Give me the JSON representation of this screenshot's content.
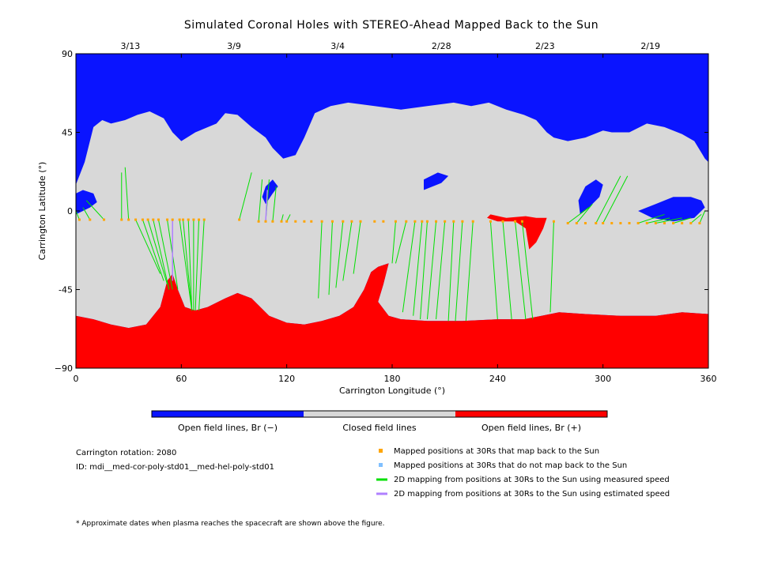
{
  "chart_data": {
    "type": "map",
    "title": "Simulated Coronal Holes with STEREO-Ahead Mapped Back to the Sun",
    "xlabel": "Carrington Longitude (°)",
    "ylabel": "Carrington Latitude (°)",
    "xlim": [
      0,
      360
    ],
    "ylim": [
      -90,
      90
    ],
    "x_ticks": [
      0,
      60,
      120,
      180,
      240,
      300,
      360
    ],
    "y_ticks": [
      {
        "value": 90,
        "label": "90"
      },
      {
        "value": 45,
        "label": "45"
      },
      {
        "value": 0,
        "label": "0"
      },
      {
        "value": -45,
        "label": "-45"
      },
      {
        "value": -90,
        "label": "−90"
      }
    ],
    "date_ticks": [
      {
        "lon": 31,
        "label": "3/13"
      },
      {
        "lon": 90,
        "label": "3/9"
      },
      {
        "lon": 149,
        "label": "3/4"
      },
      {
        "lon": 208,
        "label": "2/28"
      },
      {
        "lon": 267,
        "label": "2/23"
      },
      {
        "lon": 327,
        "label": "2/19"
      }
    ],
    "colors": {
      "open_negative": "#0a14ff",
      "closed": "#d8d8d8",
      "open_positive": "#ff0000",
      "mapped": "#ffa500",
      "unmapped": "#80c0ff",
      "measured": "#00e000",
      "estimated": "#b080ff"
    },
    "south_boundary": [
      [
        0,
        -60
      ],
      [
        10,
        -62
      ],
      [
        20,
        -65
      ],
      [
        30,
        -67
      ],
      [
        40,
        -65
      ],
      [
        48,
        -55
      ],
      [
        52,
        -40
      ],
      [
        55,
        -36
      ],
      [
        58,
        -45
      ],
      [
        62,
        -55
      ],
      [
        68,
        -57
      ],
      [
        75,
        -55
      ],
      [
        85,
        -50
      ],
      [
        92,
        -47
      ],
      [
        100,
        -50
      ],
      [
        110,
        -60
      ],
      [
        120,
        -64
      ],
      [
        130,
        -65
      ],
      [
        140,
        -63
      ],
      [
        150,
        -60
      ],
      [
        158,
        -55
      ],
      [
        164,
        -45
      ],
      [
        168,
        -35
      ],
      [
        172,
        -32
      ],
      [
        178,
        -30
      ],
      [
        175,
        -42
      ],
      [
        172,
        -52
      ],
      [
        178,
        -60
      ],
      [
        185,
        -62
      ],
      [
        200,
        -63
      ],
      [
        220,
        -63
      ],
      [
        240,
        -62
      ],
      [
        255,
        -62
      ],
      [
        265,
        -60
      ],
      [
        275,
        -58
      ],
      [
        290,
        -59
      ],
      [
        310,
        -60
      ],
      [
        330,
        -60
      ],
      [
        345,
        -58
      ],
      [
        360,
        -59
      ]
    ],
    "north_boundary": [
      [
        0,
        15
      ],
      [
        5,
        28
      ],
      [
        10,
        48
      ],
      [
        15,
        52
      ],
      [
        20,
        50
      ],
      [
        28,
        52
      ],
      [
        35,
        55
      ],
      [
        42,
        57
      ],
      [
        50,
        53
      ],
      [
        55,
        45
      ],
      [
        60,
        40
      ],
      [
        68,
        45
      ],
      [
        80,
        50
      ],
      [
        85,
        56
      ],
      [
        92,
        55
      ],
      [
        100,
        48
      ],
      [
        108,
        42
      ],
      [
        112,
        36
      ],
      [
        118,
        30
      ],
      [
        125,
        32
      ],
      [
        130,
        42
      ],
      [
        136,
        56
      ],
      [
        145,
        60
      ],
      [
        155,
        62
      ],
      [
        170,
        60
      ],
      [
        185,
        58
      ],
      [
        200,
        60
      ],
      [
        215,
        62
      ],
      [
        225,
        60
      ],
      [
        235,
        62
      ],
      [
        245,
        58
      ],
      [
        255,
        55
      ],
      [
        262,
        52
      ],
      [
        268,
        45
      ],
      [
        272,
        42
      ],
      [
        280,
        40
      ],
      [
        290,
        42
      ],
      [
        300,
        46
      ],
      [
        305,
        45
      ],
      [
        315,
        45
      ],
      [
        325,
        50
      ],
      [
        335,
        48
      ],
      [
        345,
        44
      ],
      [
        352,
        40
      ],
      [
        358,
        30
      ],
      [
        360,
        28
      ]
    ],
    "neg_holes_mid": [
      {
        "pts": [
          [
            0,
            -2
          ],
          [
            8,
            2
          ],
          [
            12,
            5
          ],
          [
            10,
            10
          ],
          [
            4,
            12
          ],
          [
            0,
            10
          ]
        ]
      },
      {
        "pts": [
          [
            320,
            0
          ],
          [
            330,
            4
          ],
          [
            340,
            8
          ],
          [
            350,
            8
          ],
          [
            356,
            6
          ],
          [
            358,
            2
          ],
          [
            352,
            -4
          ],
          [
            340,
            -6
          ],
          [
            328,
            -4
          ]
        ]
      },
      {
        "pts": [
          [
            287,
            -2
          ],
          [
            292,
            2
          ],
          [
            298,
            8
          ],
          [
            300,
            15
          ],
          [
            296,
            18
          ],
          [
            290,
            14
          ],
          [
            286,
            6
          ]
        ]
      },
      {
        "pts": [
          [
            108,
            4
          ],
          [
            112,
            10
          ],
          [
            115,
            14
          ],
          [
            112,
            18
          ],
          [
            108,
            14
          ],
          [
            106,
            8
          ]
        ]
      },
      {
        "pts": [
          [
            198,
            12
          ],
          [
            208,
            16
          ],
          [
            212,
            20
          ],
          [
            206,
            22
          ],
          [
            198,
            18
          ]
        ]
      }
    ],
    "closed_islands": [
      {
        "pts": [
          [
            148,
            48
          ],
          [
            162,
            44
          ],
          [
            175,
            46
          ],
          [
            180,
            52
          ],
          [
            172,
            58
          ],
          [
            158,
            58
          ],
          [
            150,
            54
          ]
        ]
      },
      {
        "pts": [
          [
            48,
            24
          ],
          [
            56,
            22
          ],
          [
            62,
            28
          ],
          [
            56,
            32
          ],
          [
            48,
            30
          ]
        ]
      },
      {
        "pts": [
          [
            285,
            40
          ],
          [
            295,
            36
          ],
          [
            300,
            30
          ],
          [
            294,
            24
          ],
          [
            286,
            26
          ],
          [
            282,
            34
          ]
        ]
      },
      {
        "pts": [
          [
            320,
            40
          ],
          [
            332,
            36
          ],
          [
            338,
            28
          ],
          [
            330,
            24
          ],
          [
            322,
            30
          ]
        ]
      }
    ],
    "pos_holes": [
      {
        "pts": [
          [
            236,
            -2
          ],
          [
            245,
            -4
          ],
          [
            256,
            -3
          ],
          [
            262,
            -4
          ],
          [
            268,
            -4
          ],
          [
            266,
            -10
          ],
          [
            262,
            -18
          ],
          [
            258,
            -22
          ],
          [
            256,
            -10
          ],
          [
            250,
            -6
          ],
          [
            240,
            -6
          ],
          [
            234,
            -4
          ]
        ]
      }
    ],
    "mapped_points": [
      [
        2,
        -5
      ],
      [
        8,
        -5
      ],
      [
        16,
        -5
      ],
      [
        26,
        -5
      ],
      [
        30,
        -5
      ],
      [
        34,
        -5
      ],
      [
        38,
        -5
      ],
      [
        41,
        -5
      ],
      [
        44,
        -5
      ],
      [
        47,
        -5
      ],
      [
        52,
        -5
      ],
      [
        55,
        -5
      ],
      [
        59,
        -5
      ],
      [
        61,
        -5
      ],
      [
        64,
        -5
      ],
      [
        67,
        -5
      ],
      [
        70,
        -5
      ],
      [
        73,
        -5
      ],
      [
        93,
        -5
      ],
      [
        104,
        -6
      ],
      [
        108,
        -6
      ],
      [
        112,
        -6
      ],
      [
        117,
        -6
      ],
      [
        120,
        -6
      ],
      [
        125,
        -6
      ],
      [
        130,
        -6
      ],
      [
        134,
        -6
      ],
      [
        140,
        -6
      ],
      [
        146,
        -6
      ],
      [
        152,
        -6
      ],
      [
        157,
        -6
      ],
      [
        162,
        -6
      ],
      [
        170,
        -6
      ],
      [
        175,
        -6
      ],
      [
        182,
        -6
      ],
      [
        188,
        -6
      ],
      [
        193,
        -6
      ],
      [
        197,
        -6
      ],
      [
        200,
        -6
      ],
      [
        205,
        -6
      ],
      [
        210,
        -6
      ],
      [
        215,
        -6
      ],
      [
        220,
        -6
      ],
      [
        226,
        -6
      ],
      [
        236,
        -6
      ],
      [
        243,
        -6
      ],
      [
        250,
        -6
      ],
      [
        254,
        -6
      ],
      [
        272,
        -6
      ],
      [
        280,
        -7
      ],
      [
        285,
        -7
      ],
      [
        290,
        -7
      ],
      [
        296,
        -7
      ],
      [
        300,
        -7
      ],
      [
        305,
        -7
      ],
      [
        310,
        -7
      ],
      [
        315,
        -7
      ],
      [
        320,
        -7
      ],
      [
        325,
        -7
      ],
      [
        330,
        -7
      ],
      [
        335,
        -7
      ],
      [
        340,
        -7
      ],
      [
        345,
        -7
      ],
      [
        350,
        -7
      ],
      [
        355,
        -7
      ]
    ],
    "unmapped_points": [],
    "measured_lines": [
      [
        [
          2,
          -5
        ],
        [
          0,
          0
        ]
      ],
      [
        [
          8,
          -5
        ],
        [
          4,
          2
        ]
      ],
      [
        [
          16,
          -5
        ],
        [
          6,
          6
        ]
      ],
      [
        [
          26,
          -5
        ],
        [
          26,
          22
        ]
      ],
      [
        [
          30,
          -5
        ],
        [
          28,
          25
        ]
      ],
      [
        [
          34,
          -5
        ],
        [
          48,
          -36
        ]
      ],
      [
        [
          38,
          -5
        ],
        [
          50,
          -40
        ]
      ],
      [
        [
          41,
          -5
        ],
        [
          52,
          -42
        ]
      ],
      [
        [
          44,
          -5
        ],
        [
          53,
          -45
        ]
      ],
      [
        [
          47,
          -5
        ],
        [
          55,
          -45
        ]
      ],
      [
        [
          52,
          -5
        ],
        [
          58,
          -45
        ]
      ],
      [
        [
          59,
          -5
        ],
        [
          66,
          -57
        ]
      ],
      [
        [
          61,
          -5
        ],
        [
          66,
          -57
        ]
      ],
      [
        [
          64,
          -5
        ],
        [
          66,
          -57
        ]
      ],
      [
        [
          67,
          -5
        ],
        [
          67,
          -57
        ]
      ],
      [
        [
          70,
          -5
        ],
        [
          68,
          -57
        ]
      ],
      [
        [
          73,
          -5
        ],
        [
          70,
          -57
        ]
      ],
      [
        [
          93,
          -5
        ],
        [
          100,
          22
        ]
      ],
      [
        [
          104,
          -6
        ],
        [
          106,
          18
        ]
      ],
      [
        [
          108,
          -6
        ],
        [
          110,
          18
        ]
      ],
      [
        [
          112,
          -6
        ],
        [
          114,
          14
        ]
      ],
      [
        [
          117,
          -6
        ],
        [
          118,
          -2
        ]
      ],
      [
        [
          120,
          -6
        ],
        [
          122,
          -2
        ]
      ],
      [
        [
          140,
          -6
        ],
        [
          138,
          -50
        ]
      ],
      [
        [
          146,
          -6
        ],
        [
          144,
          -48
        ]
      ],
      [
        [
          152,
          -6
        ],
        [
          148,
          -44
        ]
      ],
      [
        [
          157,
          -6
        ],
        [
          152,
          -40
        ]
      ],
      [
        [
          162,
          -6
        ],
        [
          158,
          -36
        ]
      ],
      [
        [
          182,
          -6
        ],
        [
          180,
          -30
        ]
      ],
      [
        [
          188,
          -6
        ],
        [
          182,
          -30
        ]
      ],
      [
        [
          193,
          -6
        ],
        [
          186,
          -58
        ]
      ],
      [
        [
          197,
          -6
        ],
        [
          192,
          -60
        ]
      ],
      [
        [
          200,
          -6
        ],
        [
          196,
          -62
        ]
      ],
      [
        [
          205,
          -6
        ],
        [
          200,
          -62
        ]
      ],
      [
        [
          210,
          -6
        ],
        [
          205,
          -62
        ]
      ],
      [
        [
          215,
          -6
        ],
        [
          212,
          -63
        ]
      ],
      [
        [
          220,
          -6
        ],
        [
          216,
          -63
        ]
      ],
      [
        [
          226,
          -6
        ],
        [
          222,
          -63
        ]
      ],
      [
        [
          236,
          -6
        ],
        [
          240,
          -62
        ]
      ],
      [
        [
          243,
          -6
        ],
        [
          248,
          -62
        ]
      ],
      [
        [
          250,
          -6
        ],
        [
          256,
          -62
        ]
      ],
      [
        [
          254,
          -6
        ],
        [
          260,
          -62
        ]
      ],
      [
        [
          272,
          -6
        ],
        [
          270,
          -58
        ]
      ],
      [
        [
          280,
          -7
        ],
        [
          292,
          2
        ]
      ],
      [
        [
          285,
          -7
        ],
        [
          294,
          4
        ]
      ],
      [
        [
          296,
          -7
        ],
        [
          310,
          20
        ]
      ],
      [
        [
          300,
          -7
        ],
        [
          314,
          20
        ]
      ],
      [
        [
          320,
          -7
        ],
        [
          335,
          -2
        ]
      ],
      [
        [
          325,
          -7
        ],
        [
          338,
          -4
        ]
      ],
      [
        [
          330,
          -7
        ],
        [
          345,
          -4
        ]
      ],
      [
        [
          340,
          -7
        ],
        [
          350,
          -4
        ]
      ],
      [
        [
          350,
          -7
        ],
        [
          356,
          -2
        ]
      ],
      [
        [
          355,
          -7
        ],
        [
          358,
          0
        ]
      ]
    ],
    "estimated_lines": [
      [
        [
          55,
          -5
        ],
        [
          55,
          -40
        ]
      ],
      [
        [
          108,
          -6
        ],
        [
          109,
          12
        ]
      ]
    ],
    "colorbar": [
      "Open field lines, Br (−)",
      "Closed field lines",
      "Open field lines, Br (+)"
    ]
  },
  "info": {
    "rotation": "Carrington rotation: 2080",
    "id": "ID: mdi__med-cor-poly-std01__med-hel-poly-std01"
  },
  "legend": [
    {
      "key": "mapped",
      "label": "Mapped positions at 30Rs that map back to the Sun"
    },
    {
      "key": "unmapped",
      "label": "Mapped positions at 30Rs that do not map back to the Sun"
    },
    {
      "key": "measured",
      "label": "2D mapping from positions at 30Rs to the Sun using measured speed"
    },
    {
      "key": "estimated",
      "label": "2D mapping from positions at 30Rs to the Sun using estimated speed"
    }
  ],
  "footnote": "* Approximate dates when plasma reaches the spacecraft are shown above the figure."
}
